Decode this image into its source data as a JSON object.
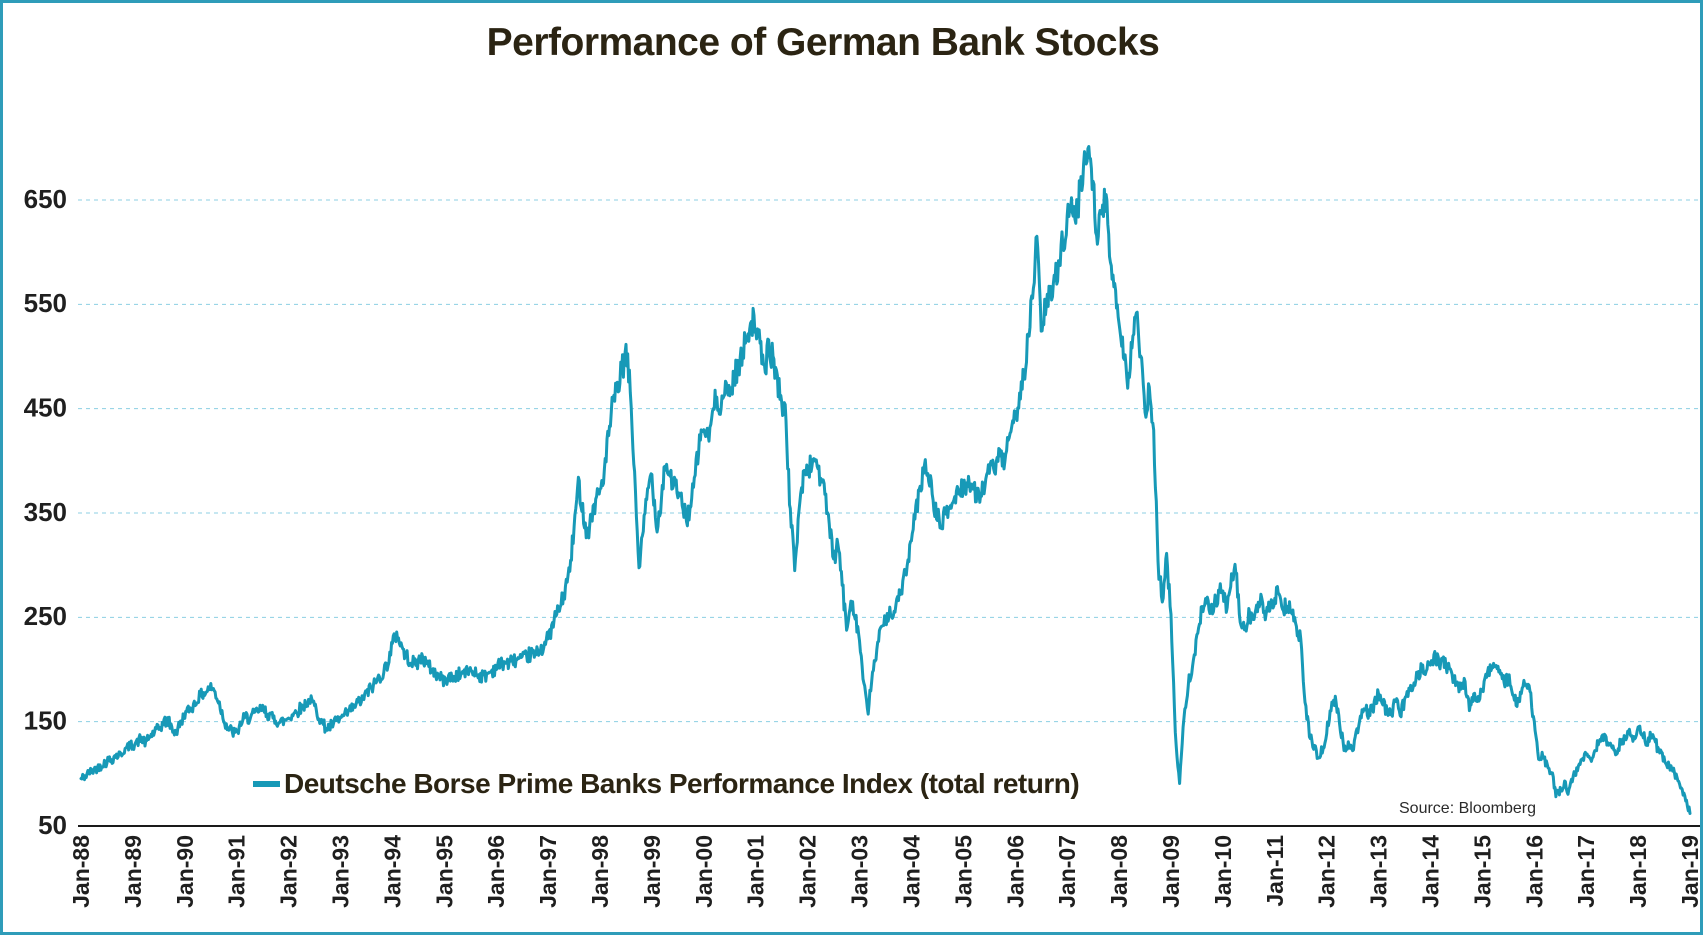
{
  "title": "Performance of German Bank Stocks",
  "source_note": "Source: Bloomberg",
  "legend": {
    "label": "Deutsche Borse Prime Banks Performance Index (total return)"
  },
  "colors": {
    "line": "#1799b7",
    "gridline": "#8ccfe3",
    "axis": "#1a1a1a",
    "tick_text": "#1f1f1f",
    "title_text": "#2b2413",
    "frame_border": "#2f9cb9",
    "background": "#ffffff"
  },
  "chart_data": {
    "type": "line",
    "title": "Performance of German Bank Stocks",
    "xlabel": "",
    "ylabel": "",
    "grid": "horizontal-dashed",
    "legend_position": "bottom-inside",
    "y_ticks": [
      50,
      150,
      250,
      350,
      450,
      550,
      650
    ],
    "ylim": [
      50,
      720
    ],
    "x_tick_labels": [
      "Jan-88",
      "Jan-89",
      "Jan-90",
      "Jan-91",
      "Jan-92",
      "Jan-93",
      "Jan-94",
      "Jan-95",
      "Jan-96",
      "Jan-97",
      "Jan-98",
      "Jan-99",
      "Jan-00",
      "Jan-01",
      "Jan-02",
      "Jan-03",
      "Jan-04",
      "Jan-05",
      "Jan-06",
      "Jan-07",
      "Jan-08",
      "Jan-09",
      "Jan-10",
      "Jan-11",
      "Jan-12",
      "Jan-13",
      "Jan-14",
      "Jan-15",
      "Jan-16",
      "Jan-17",
      "Jan-18",
      "Jan-19"
    ],
    "series": [
      {
        "name": "Deutsche Borse Prime Banks Performance Index (total return)",
        "frequency": "monthly",
        "start": "Jan-1988",
        "end": "Jan-2019",
        "values": [
          95,
          98,
          101,
          104,
          107,
          109,
          112,
          114,
          117,
          119,
          122,
          125,
          128,
          131,
          134,
          130,
          136,
          140,
          143,
          148,
          152,
          144,
          139,
          149,
          156,
          161,
          166,
          171,
          176,
          179,
          184,
          178,
          168,
          152,
          144,
          140,
          139,
          148,
          155,
          153,
          157,
          160,
          163,
          158,
          155,
          152,
          149,
          151,
          154,
          157,
          160,
          164,
          167,
          170,
          165,
          155,
          147,
          143,
          147,
          150,
          153,
          156,
          160,
          164,
          168,
          172,
          177,
          182,
          187,
          193,
          198,
          207,
          224,
          235,
          224,
          214,
          209,
          205,
          208,
          212,
          205,
          200,
          196,
          192,
          190,
          193,
          191,
          194,
          196,
          198,
          200,
          197,
          195,
          193,
          196,
          199,
          202,
          205,
          207,
          206,
          208,
          210,
          209,
          212,
          215,
          214,
          218,
          223,
          230,
          242,
          254,
          262,
          278,
          295,
          335,
          380,
          355,
          330,
          345,
          362,
          372,
          390,
          425,
          455,
          470,
          485,
          505,
          468,
          385,
          298,
          332,
          372,
          388,
          338,
          355,
          398,
          388,
          378,
          368,
          358,
          345,
          356,
          386,
          420,
          432,
          420,
          445,
          462,
          452,
          470,
          465,
          480,
          492,
          502,
          522,
          535,
          530,
          508,
          488,
          510,
          498,
          478,
          458,
          438,
          350,
          298,
          352,
          386,
          390,
          398,
          402,
          382,
          368,
          340,
          302,
          322,
          282,
          238,
          268,
          252,
          228,
          185,
          158,
          198,
          218,
          238,
          248,
          258,
          252,
          268,
          283,
          298,
          322,
          352,
          372,
          395,
          385,
          362,
          345,
          338,
          350,
          356,
          364,
          372,
          375,
          380,
          374,
          366,
          370,
          378,
          388,
          394,
          402,
          398,
          408,
          422,
          442,
          462,
          485,
          515,
          560,
          612,
          528,
          545,
          558,
          572,
          590,
          612,
          628,
          652,
          628,
          662,
          688,
          703,
          668,
          612,
          638,
          652,
          588,
          572,
          535,
          505,
          475,
          512,
          542,
          498,
          445,
          468,
          425,
          302,
          268,
          308,
          252,
          138,
          92,
          152,
          188,
          205,
          230,
          256,
          272,
          256,
          262,
          272,
          276,
          256,
          290,
          294,
          246,
          236,
          256,
          246,
          258,
          266,
          250,
          262,
          268,
          274,
          258,
          262,
          252,
          242,
          228,
          168,
          138,
          126,
          116,
          122,
          140,
          162,
          172,
          150,
          123,
          129,
          123,
          142,
          156,
          161,
          158,
          167,
          177,
          168,
          159,
          156,
          171,
          157,
          170,
          181,
          186,
          195,
          201,
          198,
          205,
          214,
          206,
          210,
          200,
          196,
          186,
          181,
          188,
          162,
          178,
          172,
          182,
          195,
          202,
          206,
          196,
          187,
          192,
          177,
          166,
          178,
          188,
          179,
          148,
          113,
          118,
          108,
          101,
          80,
          85,
          91,
          83,
          96,
          105,
          115,
          118,
          114,
          124,
          130,
          134,
          130,
          126,
          121,
          130,
          136,
          140,
          134,
          146,
          139,
          129,
          136,
          131,
          119,
          114,
          109,
          104,
          95,
          88,
          76,
          62
        ]
      }
    ]
  }
}
